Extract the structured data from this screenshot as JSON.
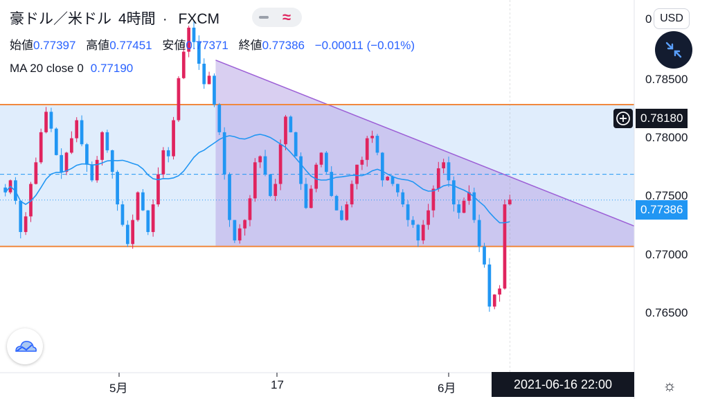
{
  "header": {
    "symbol": "豪ドル／米ドル",
    "interval": "4時間",
    "exchange": "FXCM"
  },
  "ohlc": {
    "open_label": "始値",
    "open": "0.77397",
    "high_label": "高値",
    "high": "0.77451",
    "low_label": "安値",
    "low": "0.77371",
    "close_label": "終値",
    "close": "0.77386",
    "change": "−0.00011 (−0.01%)"
  },
  "indicator": {
    "label": "MA 20 close 0",
    "value": "0.77190"
  },
  "currency_button": "USD",
  "price_axis": {
    "top_tick": "0",
    "ticks": [
      "0.78500",
      "0.78000",
      "0.77500",
      "0.77000",
      "0.76500"
    ],
    "crosshair_price": "0.78180",
    "last_price": "0.77386"
  },
  "time_axis": {
    "ticks": [
      "5月",
      "17",
      "6月"
    ],
    "crosshair_time": "2021-06-16  22:00"
  },
  "colors": {
    "up": "#e0245e",
    "down": "#2196f3",
    "ma": "#2196f3",
    "range_fill": "#dbeafb",
    "triangle_fill": "#b9a8e6",
    "triangle_line": "#9c5fd6",
    "support_line": "#f0883e",
    "last_price": "#2196f3"
  },
  "icons": {
    "logo": "tradingview-cloud-icon",
    "settings": "gear-icon",
    "collapse": "collapse-arrows-icon",
    "crosshair": "plus-circle-icon"
  },
  "chart_data": {
    "type": "candlestick",
    "title": "豪ドル／米ドル 4時間 FXCM",
    "ylim": [
      0.7595,
      0.7905
    ],
    "y_ticks": [
      0.785,
      0.78,
      0.775,
      0.77,
      0.765
    ],
    "x_ticks": [
      "5月",
      "17",
      "6月"
    ],
    "levels": {
      "resistance": 0.7818,
      "support": 0.77,
      "dashed": 0.776,
      "last": 0.77386
    },
    "triangle": {
      "start_x": 0.34,
      "start_price": 0.7855,
      "end_price": 0.7717
    },
    "series": [
      {
        "name": "AUD/USD",
        "close": [
          0.7745,
          0.7755,
          0.7738,
          0.7712,
          0.7725,
          0.7752,
          0.777,
          0.7795,
          0.7812,
          0.7798,
          0.7776,
          0.7762,
          0.7778,
          0.779,
          0.7805,
          0.7785,
          0.7768,
          0.7755,
          0.7772,
          0.7795,
          0.778,
          0.7762,
          0.7735,
          0.7718,
          0.7702,
          0.7722,
          0.7745,
          0.773,
          0.7712,
          0.7735,
          0.776,
          0.778,
          0.7775,
          0.7805,
          0.784,
          0.7862,
          0.7882,
          0.787,
          0.7852,
          0.7835,
          0.7842,
          0.7818,
          0.7795,
          0.776,
          0.7722,
          0.7705,
          0.7715,
          0.7722,
          0.774,
          0.777,
          0.7775,
          0.776,
          0.7742,
          0.7752,
          0.7785,
          0.7808,
          0.7795,
          0.7775,
          0.7752,
          0.7732,
          0.7748,
          0.7768,
          0.7778,
          0.7762,
          0.7742,
          0.773,
          0.7722,
          0.7735,
          0.7752,
          0.7768,
          0.7772,
          0.779,
          0.7792,
          0.7778,
          0.7755,
          0.7758,
          0.7752,
          0.7745,
          0.7735,
          0.7722,
          0.7718,
          0.7705,
          0.7718,
          0.773,
          0.7748,
          0.7765,
          0.777,
          0.7755,
          0.7735,
          0.7728,
          0.7738,
          0.7745,
          0.7722,
          0.77,
          0.7685,
          0.765,
          0.766,
          0.7665,
          0.7735,
          0.7739
        ],
        "volatility": 0.001
      },
      {
        "name": "MA 20 close 0",
        "type": "line",
        "period": 20
      }
    ]
  }
}
